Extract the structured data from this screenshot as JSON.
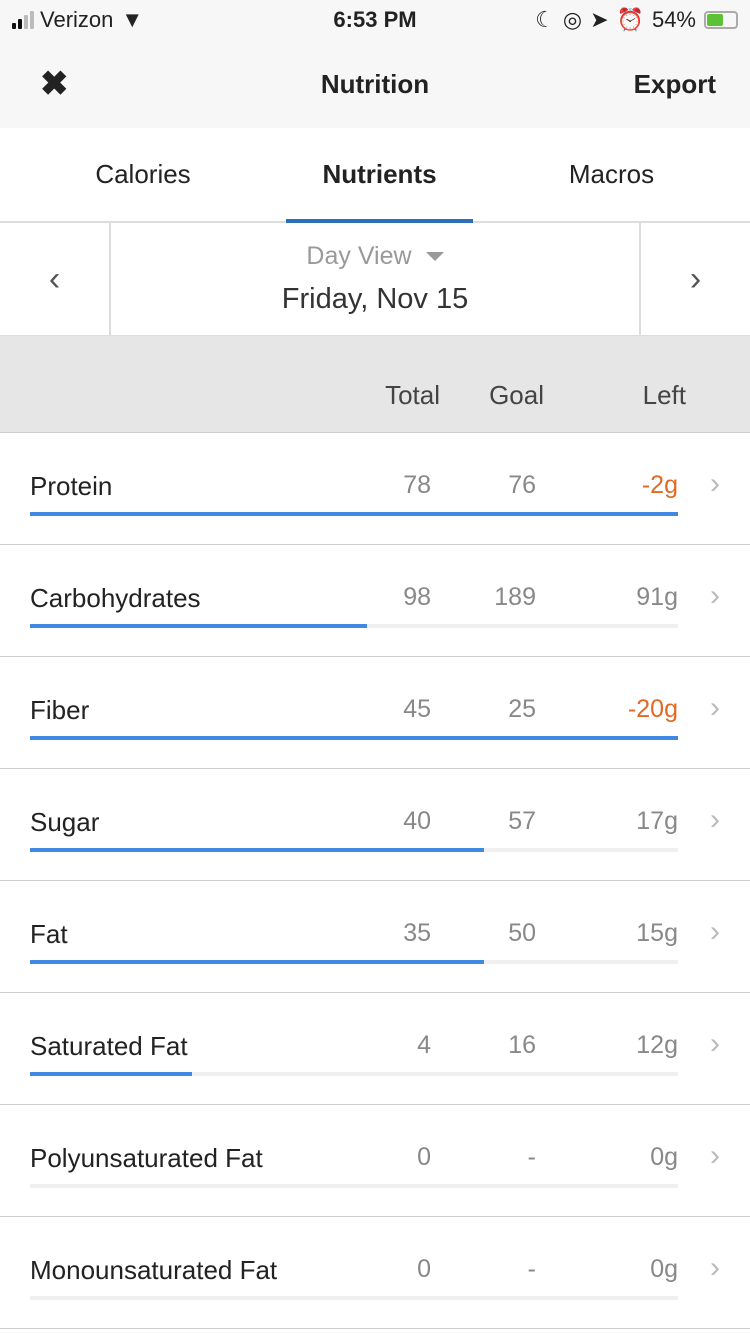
{
  "status": {
    "carrier": "Verizon",
    "time": "6:53 PM",
    "battery": "54%",
    "battery_level": 0.54
  },
  "nav": {
    "close_icon": "close-icon",
    "title": "Nutrition",
    "export": "Export"
  },
  "tabs": [
    {
      "label": "Calories"
    },
    {
      "label": "Nutrients",
      "active": true
    },
    {
      "label": "Macros"
    }
  ],
  "date": {
    "view": "Day View",
    "date": "Friday, Nov 15"
  },
  "columns": {
    "total": "Total",
    "goal": "Goal",
    "left": "Left"
  },
  "colors": {
    "accent": "#2f6fba",
    "bar": "#3f8ae0",
    "over": "#e06a24"
  },
  "nutrients": [
    {
      "name": "Protein",
      "total": "78",
      "goal": "76",
      "left": "-2g",
      "over": true,
      "progress": 1.0
    },
    {
      "name": "Carbohydrates",
      "total": "98",
      "goal": "189",
      "left": "91g",
      "over": false,
      "progress": 0.52
    },
    {
      "name": "Fiber",
      "total": "45",
      "goal": "25",
      "left": "-20g",
      "over": true,
      "progress": 1.0
    },
    {
      "name": "Sugar",
      "total": "40",
      "goal": "57",
      "left": "17g",
      "over": false,
      "progress": 0.7
    },
    {
      "name": "Fat",
      "total": "35",
      "goal": "50",
      "left": "15g",
      "over": false,
      "progress": 0.7
    },
    {
      "name": "Saturated Fat",
      "total": "4",
      "goal": "16",
      "left": "12g",
      "over": false,
      "progress": 0.25
    },
    {
      "name": "Polyunsaturated Fat",
      "total": "0",
      "goal": "-",
      "left": "0g",
      "over": false,
      "progress": 0
    },
    {
      "name": "Monounsaturated Fat",
      "total": "0",
      "goal": "-",
      "left": "0g",
      "over": false,
      "progress": 0
    }
  ]
}
